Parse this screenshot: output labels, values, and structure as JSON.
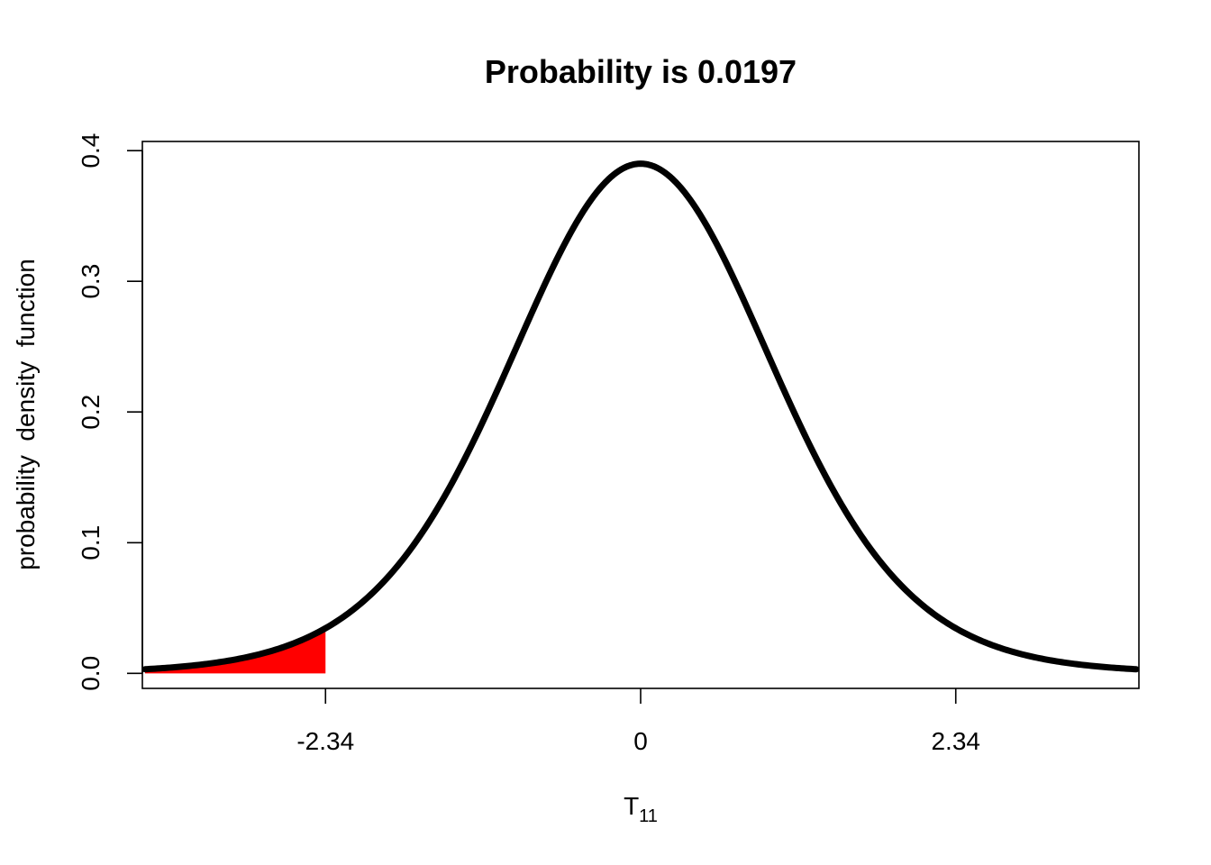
{
  "chart_data": {
    "type": "line",
    "title": "Probability is 0.0197",
    "xlabel": {
      "main": "T",
      "subscript": "11"
    },
    "ylabel": "probability  density  function",
    "distribution": "Student t",
    "degrees_of_freedom": 11,
    "xlim": [
      -3.7,
      3.7
    ],
    "ylim": [
      -0.0115,
      0.407
    ],
    "curve_x_range": [
      -3.68,
      3.68
    ],
    "x_ticks": [
      {
        "value": -2.34,
        "label": "-2.34"
      },
      {
        "value": 0,
        "label": "0"
      },
      {
        "value": 2.34,
        "label": "2.34"
      }
    ],
    "y_ticks": [
      {
        "value": 0.0,
        "label": "0.0"
      },
      {
        "value": 0.1,
        "label": "0.1"
      },
      {
        "value": 0.2,
        "label": "0.2"
      },
      {
        "value": 0.3,
        "label": "0.3"
      },
      {
        "value": 0.4,
        "label": "0.4"
      }
    ],
    "shaded_region": {
      "from": -3.68,
      "to": -2.34,
      "color": "#ff0000",
      "probability": 0.0197
    },
    "curve_color": "#000000",
    "grid": false,
    "legend": "none"
  }
}
